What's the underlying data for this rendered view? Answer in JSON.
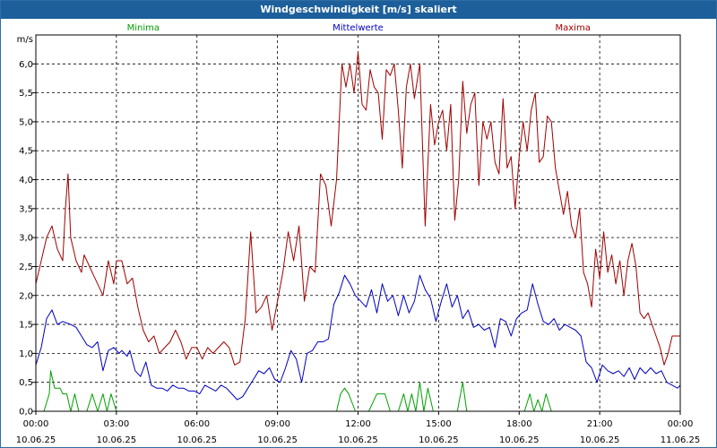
{
  "chart_data": {
    "type": "line",
    "title": "Windgeschwindigkeit [m/s] skaliert",
    "ylabel": "m/s",
    "ylim": [
      0,
      6.5
    ],
    "yticks": [
      "0,0",
      "0,5",
      "1,0",
      "1,5",
      "2,0",
      "2,5",
      "3,0",
      "3,5",
      "4,0",
      "4,5",
      "5,0",
      "5,5",
      "6,0"
    ],
    "xrange": [
      0,
      24
    ],
    "xticks": [
      {
        "time": "00:00",
        "date": "10.06.25"
      },
      {
        "time": "03:00",
        "date": "10.06.25"
      },
      {
        "time": "06:00",
        "date": "10.06.25"
      },
      {
        "time": "09:00",
        "date": "10.06.25"
      },
      {
        "time": "12:00",
        "date": "10.06.25"
      },
      {
        "time": "15:00",
        "date": "10.06.25"
      },
      {
        "time": "18:00",
        "date": "10.06.25"
      },
      {
        "time": "21:00",
        "date": "10.06.25"
      },
      {
        "time": "00:00",
        "date": "11.06.25"
      }
    ],
    "grid": true,
    "series": [
      {
        "name": "Minima",
        "color": "#00a000",
        "points": [
          [
            0,
            0
          ],
          [
            0.3,
            0
          ],
          [
            0.5,
            0.3
          ],
          [
            0.55,
            0.7
          ],
          [
            0.7,
            0.4
          ],
          [
            0.9,
            0.4
          ],
          [
            1.0,
            0.3
          ],
          [
            1.15,
            0.3
          ],
          [
            1.3,
            0
          ],
          [
            1.45,
            0.3
          ],
          [
            1.6,
            0
          ],
          [
            1.9,
            0
          ],
          [
            2.1,
            0.3
          ],
          [
            2.3,
            0
          ],
          [
            2.5,
            0.3
          ],
          [
            2.65,
            0
          ],
          [
            2.8,
            0.3
          ],
          [
            3.0,
            0
          ],
          [
            11.2,
            0
          ],
          [
            11.35,
            0.3
          ],
          [
            11.5,
            0.4
          ],
          [
            11.65,
            0.3
          ],
          [
            11.9,
            0
          ],
          [
            12.4,
            0
          ],
          [
            12.7,
            0.3
          ],
          [
            13.0,
            0.3
          ],
          [
            13.2,
            0
          ],
          [
            13.5,
            0
          ],
          [
            13.7,
            0.3
          ],
          [
            13.85,
            0
          ],
          [
            14.0,
            0.3
          ],
          [
            14.15,
            0
          ],
          [
            14.3,
            0.5
          ],
          [
            14.45,
            0
          ],
          [
            14.6,
            0.4
          ],
          [
            14.8,
            0
          ],
          [
            15.7,
            0
          ],
          [
            15.9,
            0.5
          ],
          [
            16.05,
            0
          ],
          [
            18.2,
            0
          ],
          [
            18.4,
            0.3
          ],
          [
            18.55,
            0
          ],
          [
            18.7,
            0.2
          ],
          [
            18.85,
            0
          ],
          [
            19.0,
            0.3
          ],
          [
            19.2,
            0
          ],
          [
            24,
            0
          ]
        ]
      },
      {
        "name": "Mittelwerte",
        "color": "#0000c0",
        "points": [
          [
            0,
            0.8
          ],
          [
            0.2,
            1.1
          ],
          [
            0.4,
            1.6
          ],
          [
            0.6,
            1.75
          ],
          [
            0.8,
            1.5
          ],
          [
            1.0,
            1.55
          ],
          [
            1.3,
            1.5
          ],
          [
            1.5,
            1.45
          ],
          [
            1.7,
            1.3
          ],
          [
            1.9,
            1.15
          ],
          [
            2.1,
            1.1
          ],
          [
            2.3,
            1.2
          ],
          [
            2.5,
            0.7
          ],
          [
            2.7,
            1.05
          ],
          [
            2.9,
            1.1
          ],
          [
            3.1,
            1.0
          ],
          [
            3.2,
            1.05
          ],
          [
            3.4,
            0.95
          ],
          [
            3.5,
            1.05
          ],
          [
            3.7,
            0.7
          ],
          [
            3.9,
            0.6
          ],
          [
            4.1,
            0.85
          ],
          [
            4.3,
            0.45
          ],
          [
            4.5,
            0.4
          ],
          [
            4.7,
            0.4
          ],
          [
            4.9,
            0.35
          ],
          [
            5.1,
            0.45
          ],
          [
            5.3,
            0.4
          ],
          [
            5.5,
            0.4
          ],
          [
            5.7,
            0.35
          ],
          [
            5.9,
            0.35
          ],
          [
            6.1,
            0.3
          ],
          [
            6.3,
            0.45
          ],
          [
            6.5,
            0.4
          ],
          [
            6.7,
            0.35
          ],
          [
            6.9,
            0.45
          ],
          [
            7.1,
            0.4
          ],
          [
            7.3,
            0.3
          ],
          [
            7.5,
            0.2
          ],
          [
            7.7,
            0.25
          ],
          [
            7.9,
            0.4
          ],
          [
            8.1,
            0.55
          ],
          [
            8.3,
            0.7
          ],
          [
            8.5,
            0.65
          ],
          [
            8.7,
            0.75
          ],
          [
            8.9,
            0.55
          ],
          [
            9.1,
            0.5
          ],
          [
            9.3,
            0.75
          ],
          [
            9.5,
            1.05
          ],
          [
            9.7,
            0.9
          ],
          [
            9.9,
            0.5
          ],
          [
            10.1,
            1.0
          ],
          [
            10.3,
            1.05
          ],
          [
            10.5,
            1.2
          ],
          [
            10.7,
            1.2
          ],
          [
            10.9,
            1.25
          ],
          [
            11.1,
            1.85
          ],
          [
            11.3,
            2.05
          ],
          [
            11.5,
            2.35
          ],
          [
            11.7,
            2.2
          ],
          [
            11.9,
            2.0
          ],
          [
            12.1,
            1.9
          ],
          [
            12.3,
            1.8
          ],
          [
            12.5,
            2.1
          ],
          [
            12.7,
            1.7
          ],
          [
            12.9,
            2.2
          ],
          [
            13.1,
            1.9
          ],
          [
            13.3,
            2.0
          ],
          [
            13.5,
            1.65
          ],
          [
            13.7,
            2.0
          ],
          [
            13.9,
            1.7
          ],
          [
            14.1,
            1.9
          ],
          [
            14.3,
            2.35
          ],
          [
            14.5,
            2.1
          ],
          [
            14.7,
            1.95
          ],
          [
            14.9,
            1.55
          ],
          [
            15.1,
            1.9
          ],
          [
            15.3,
            2.2
          ],
          [
            15.5,
            1.8
          ],
          [
            15.7,
            2.0
          ],
          [
            15.9,
            1.6
          ],
          [
            16.1,
            1.75
          ],
          [
            16.3,
            1.45
          ],
          [
            16.5,
            1.5
          ],
          [
            16.7,
            1.4
          ],
          [
            16.9,
            1.45
          ],
          [
            17.1,
            1.1
          ],
          [
            17.3,
            1.6
          ],
          [
            17.5,
            1.55
          ],
          [
            17.7,
            1.3
          ],
          [
            17.9,
            1.6
          ],
          [
            18.1,
            1.7
          ],
          [
            18.3,
            1.75
          ],
          [
            18.5,
            2.2
          ],
          [
            18.7,
            1.85
          ],
          [
            18.9,
            1.55
          ],
          [
            19.1,
            1.5
          ],
          [
            19.3,
            1.6
          ],
          [
            19.5,
            1.4
          ],
          [
            19.7,
            1.5
          ],
          [
            19.9,
            1.45
          ],
          [
            20.1,
            1.4
          ],
          [
            20.3,
            1.3
          ],
          [
            20.5,
            0.85
          ],
          [
            20.7,
            0.75
          ],
          [
            20.9,
            0.5
          ],
          [
            21.1,
            0.8
          ],
          [
            21.3,
            0.7
          ],
          [
            21.5,
            0.65
          ],
          [
            21.7,
            0.7
          ],
          [
            21.9,
            0.6
          ],
          [
            22.1,
            0.75
          ],
          [
            22.3,
            0.55
          ],
          [
            22.5,
            0.75
          ],
          [
            22.7,
            0.65
          ],
          [
            22.9,
            0.75
          ],
          [
            23.1,
            0.65
          ],
          [
            23.3,
            0.7
          ],
          [
            23.5,
            0.5
          ],
          [
            23.7,
            0.45
          ],
          [
            23.9,
            0.4
          ],
          [
            24,
            0.45
          ]
        ]
      },
      {
        "name": "Maxima",
        "color": "#a00000",
        "points": [
          [
            0,
            2.2
          ],
          [
            0.2,
            2.6
          ],
          [
            0.4,
            3.0
          ],
          [
            0.6,
            3.2
          ],
          [
            0.8,
            2.8
          ],
          [
            1.0,
            2.6
          ],
          [
            1.1,
            3.5
          ],
          [
            1.2,
            4.1
          ],
          [
            1.3,
            3.0
          ],
          [
            1.5,
            2.6
          ],
          [
            1.7,
            2.4
          ],
          [
            1.8,
            2.7
          ],
          [
            2.0,
            2.5
          ],
          [
            2.2,
            2.3
          ],
          [
            2.4,
            2.1
          ],
          [
            2.5,
            2.0
          ],
          [
            2.7,
            2.6
          ],
          [
            2.9,
            2.2
          ],
          [
            3.0,
            2.6
          ],
          [
            3.2,
            2.6
          ],
          [
            3.4,
            2.2
          ],
          [
            3.6,
            2.3
          ],
          [
            3.8,
            1.8
          ],
          [
            4.0,
            1.4
          ],
          [
            4.2,
            1.2
          ],
          [
            4.4,
            1.3
          ],
          [
            4.6,
            1.0
          ],
          [
            4.8,
            1.1
          ],
          [
            5.0,
            1.2
          ],
          [
            5.2,
            1.4
          ],
          [
            5.4,
            1.2
          ],
          [
            5.6,
            0.9
          ],
          [
            5.8,
            1.1
          ],
          [
            6.0,
            1.1
          ],
          [
            6.2,
            0.9
          ],
          [
            6.4,
            1.1
          ],
          [
            6.6,
            1.0
          ],
          [
            6.8,
            1.1
          ],
          [
            7.0,
            1.2
          ],
          [
            7.2,
            1.1
          ],
          [
            7.4,
            0.8
          ],
          [
            7.6,
            0.85
          ],
          [
            7.8,
            1.6
          ],
          [
            8.0,
            3.1
          ],
          [
            8.2,
            1.7
          ],
          [
            8.4,
            1.8
          ],
          [
            8.6,
            2.0
          ],
          [
            8.8,
            1.4
          ],
          [
            9.0,
            1.9
          ],
          [
            9.2,
            2.4
          ],
          [
            9.4,
            3.1
          ],
          [
            9.6,
            2.6
          ],
          [
            9.8,
            3.2
          ],
          [
            10.0,
            1.9
          ],
          [
            10.2,
            2.5
          ],
          [
            10.4,
            2.4
          ],
          [
            10.6,
            4.1
          ],
          [
            10.8,
            3.9
          ],
          [
            11.0,
            3.2
          ],
          [
            11.2,
            4.0
          ],
          [
            11.4,
            6.0
          ],
          [
            11.55,
            5.6
          ],
          [
            11.7,
            6.0
          ],
          [
            11.85,
            5.5
          ],
          [
            12.0,
            6.2
          ],
          [
            12.15,
            5.3
          ],
          [
            12.3,
            5.2
          ],
          [
            12.45,
            5.9
          ],
          [
            12.6,
            5.6
          ],
          [
            12.75,
            5.5
          ],
          [
            12.9,
            4.7
          ],
          [
            13.05,
            5.9
          ],
          [
            13.2,
            5.8
          ],
          [
            13.35,
            6.0
          ],
          [
            13.5,
            5.2
          ],
          [
            13.65,
            4.2
          ],
          [
            13.8,
            5.6
          ],
          [
            13.95,
            6.0
          ],
          [
            14.1,
            5.4
          ],
          [
            14.3,
            6.0
          ],
          [
            14.5,
            3.2
          ],
          [
            14.7,
            5.3
          ],
          [
            14.85,
            4.6
          ],
          [
            15.0,
            5.0
          ],
          [
            15.15,
            5.2
          ],
          [
            15.3,
            4.5
          ],
          [
            15.45,
            5.3
          ],
          [
            15.6,
            3.3
          ],
          [
            15.75,
            4.0
          ],
          [
            15.9,
            5.7
          ],
          [
            16.05,
            4.8
          ],
          [
            16.2,
            5.3
          ],
          [
            16.35,
            5.5
          ],
          [
            16.5,
            3.9
          ],
          [
            16.65,
            5.0
          ],
          [
            16.8,
            4.7
          ],
          [
            16.95,
            5.0
          ],
          [
            17.1,
            4.3
          ],
          [
            17.25,
            4.1
          ],
          [
            17.4,
            5.4
          ],
          [
            17.55,
            4.2
          ],
          [
            17.7,
            4.4
          ],
          [
            17.85,
            3.5
          ],
          [
            18.0,
            4.4
          ],
          [
            18.15,
            5.0
          ],
          [
            18.3,
            4.5
          ],
          [
            18.45,
            5.2
          ],
          [
            18.6,
            5.5
          ],
          [
            18.75,
            4.3
          ],
          [
            18.9,
            4.4
          ],
          [
            19.05,
            5.1
          ],
          [
            19.2,
            5.0
          ],
          [
            19.35,
            4.2
          ],
          [
            19.5,
            3.8
          ],
          [
            19.65,
            3.4
          ],
          [
            19.8,
            3.8
          ],
          [
            19.95,
            3.2
          ],
          [
            20.1,
            3.0
          ],
          [
            20.25,
            3.5
          ],
          [
            20.4,
            2.4
          ],
          [
            20.55,
            2.2
          ],
          [
            20.7,
            1.8
          ],
          [
            20.85,
            2.8
          ],
          [
            21.0,
            2.3
          ],
          [
            21.15,
            3.1
          ],
          [
            21.3,
            2.4
          ],
          [
            21.45,
            2.7
          ],
          [
            21.6,
            2.2
          ],
          [
            21.75,
            2.6
          ],
          [
            21.9,
            2.0
          ],
          [
            22.05,
            2.6
          ],
          [
            22.2,
            2.9
          ],
          [
            22.35,
            2.5
          ],
          [
            22.5,
            1.7
          ],
          [
            22.65,
            1.6
          ],
          [
            22.8,
            1.7
          ],
          [
            22.95,
            1.5
          ],
          [
            23.1,
            1.3
          ],
          [
            23.25,
            1.1
          ],
          [
            23.4,
            0.8
          ],
          [
            23.55,
            1.0
          ],
          [
            23.7,
            1.3
          ],
          [
            24,
            1.3
          ]
        ]
      }
    ]
  }
}
